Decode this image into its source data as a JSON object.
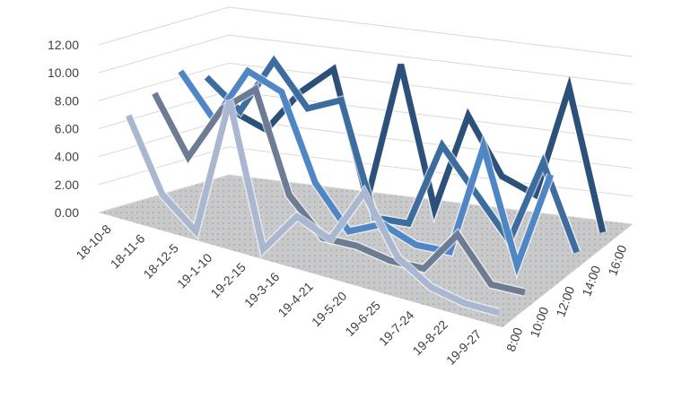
{
  "chart_data": {
    "type": "line3d",
    "categories": [
      "18-10-8",
      "18-11-6",
      "18-12-5",
      "19-1-10",
      "19-2-15",
      "19-3-16",
      "19-4-21",
      "19-5-20",
      "19-6-25",
      "19-7-24",
      "19-8-22",
      "19-9-27"
    ],
    "series": [
      {
        "name": "8:00",
        "color": "#a9b8d0",
        "values": [
          7,
          2,
          0,
          10,
          0,
          3,
          2,
          6,
          2,
          0.5,
          0,
          0
        ]
      },
      {
        "name": "10:00",
        "color": "#6e7c93",
        "values": [
          8,
          4,
          8,
          10,
          3,
          0.5,
          0.5,
          0,
          0,
          3,
          0,
          0
        ]
      },
      {
        "name": "12:00",
        "color": "#4f86c6",
        "values": [
          9,
          6,
          10,
          9,
          3,
          0,
          1,
          0,
          0,
          8,
          0,
          7
        ]
      },
      {
        "name": "14:00",
        "color": "#3d6d9f",
        "values": [
          8,
          6,
          10,
          7,
          8,
          0,
          0,
          6,
          3,
          0,
          6,
          0
        ]
      },
      {
        "name": "16:00",
        "color": "#2b5079",
        "values": [
          5,
          4,
          7,
          9,
          0,
          10,
          0,
          7,
          3,
          2,
          10,
          0
        ]
      }
    ],
    "ylim": [
      0,
      12
    ],
    "yticks": [
      {
        "value": 0,
        "label": "0.00"
      },
      {
        "value": 2,
        "label": "2.00"
      },
      {
        "value": 4,
        "label": "4.00"
      },
      {
        "value": 6,
        "label": "6.00"
      },
      {
        "value": 8,
        "label": "8.00"
      },
      {
        "value": 10,
        "label": "10.00"
      },
      {
        "value": 12,
        "label": "12.00"
      }
    ],
    "grid": true
  }
}
